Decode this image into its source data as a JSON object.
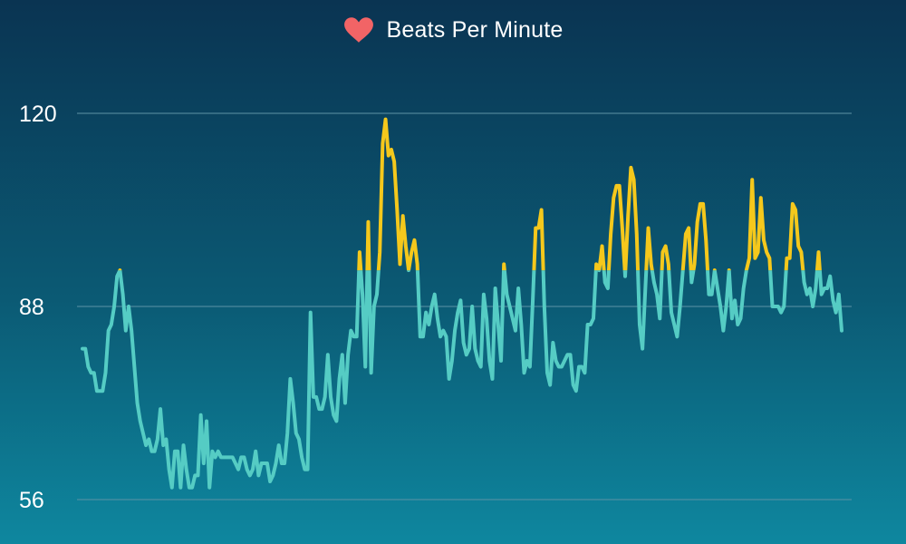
{
  "title": {
    "icon": "heart-icon",
    "icon_color": "#f26466",
    "text": "Beats Per Minute"
  },
  "colors": {
    "low_line": "#55ccc4",
    "high_line": "#f5c81c",
    "grid": "#5d93a6"
  },
  "chart_data": {
    "type": "line",
    "title": "Beats Per Minute",
    "xlabel": "",
    "ylabel": "",
    "ylim": [
      56,
      120
    ],
    "yticks": [
      56,
      88,
      120
    ],
    "ytick_labels": [
      "56",
      "88",
      "120"
    ],
    "highlight_threshold": 94,
    "grid": true,
    "x_start": 0,
    "x_end": 100,
    "series": [
      {
        "values": [
          81,
          81,
          78,
          77,
          77,
          74,
          74,
          74,
          77,
          84,
          85,
          88,
          93,
          94,
          90,
          84,
          88,
          84,
          78,
          72,
          69,
          67,
          65,
          66,
          64,
          64,
          66,
          71,
          65,
          66,
          61,
          58,
          64,
          64,
          58,
          65,
          61,
          58,
          58,
          60,
          60,
          70,
          62,
          69,
          58,
          64,
          63,
          64,
          63,
          63,
          63,
          63,
          63,
          62,
          61,
          63,
          63,
          61,
          60,
          61,
          64,
          60,
          62,
          62,
          62,
          59,
          60,
          62,
          65,
          62,
          62,
          67,
          76,
          72,
          67,
          66,
          63,
          61,
          61,
          87,
          73,
          73,
          71,
          71,
          73,
          80,
          73,
          70,
          69,
          76,
          80,
          72,
          80,
          84,
          83,
          83,
          97,
          90,
          78,
          102,
          77,
          88,
          90,
          97,
          115,
          119,
          113,
          114,
          112,
          104,
          95,
          103,
          98,
          94,
          97,
          99,
          95,
          83,
          83,
          87,
          85,
          88,
          90,
          86,
          83,
          84,
          83,
          76,
          79,
          84,
          87,
          89,
          82,
          80,
          81,
          88,
          81,
          79,
          78,
          90,
          86,
          79,
          76,
          91,
          85,
          79,
          95,
          90,
          88,
          86,
          84,
          91,
          85,
          77,
          79,
          78,
          89,
          101,
          101,
          104,
          88,
          77,
          75,
          82,
          79,
          78,
          78,
          79,
          80,
          80,
          75,
          74,
          78,
          78,
          77,
          85,
          85,
          86,
          95,
          94,
          98,
          92,
          91,
          100,
          106,
          108,
          108,
          101,
          93,
          103,
          111,
          109,
          100,
          85,
          81,
          91,
          101,
          95,
          92,
          90,
          86,
          97,
          98,
          95,
          87,
          85,
          83,
          88,
          94,
          100,
          101,
          92,
          95,
          102,
          105,
          105,
          99,
          90,
          90,
          94,
          91,
          88,
          84,
          88,
          94,
          86,
          89,
          85,
          86,
          91,
          94,
          96,
          109,
          96,
          97,
          106,
          99,
          97,
          96,
          88,
          88,
          88,
          87,
          88,
          96,
          96,
          105,
          104,
          98,
          97,
          92,
          90,
          91,
          88,
          91,
          97,
          90,
          91,
          91,
          93,
          89,
          87,
          90,
          84
        ]
      }
    ]
  }
}
